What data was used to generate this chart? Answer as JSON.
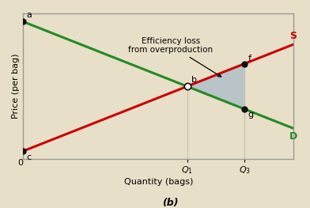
{
  "bg_color": "#e8dfc8",
  "plot_bg_color": "#e8dfc8",
  "supply_color": "#cc0000",
  "demand_color": "#228B22",
  "shade_color": "#a8bcc8",
  "shade_alpha": 0.75,
  "point_color": "#111111",
  "open_point_color": "#ffffff",
  "vline_color": "#ccc4aa",
  "xlabel": "Quantity (bags)",
  "ylabel": "Price (per bag)",
  "subtitle": "(b)",
  "annotation": "Efficiency loss\nfrom overproduction",
  "Q1": 20,
  "Q3": 27,
  "P_eq": 45,
  "P_a": 85,
  "P_c": 5,
  "P_f": 59,
  "P_g": 31,
  "x_min": 0,
  "x_max": 33,
  "y_min": 0,
  "y_max": 90,
  "line_width": 2.2,
  "spine_color": "#aaaaaa",
  "border_color": "#999999"
}
